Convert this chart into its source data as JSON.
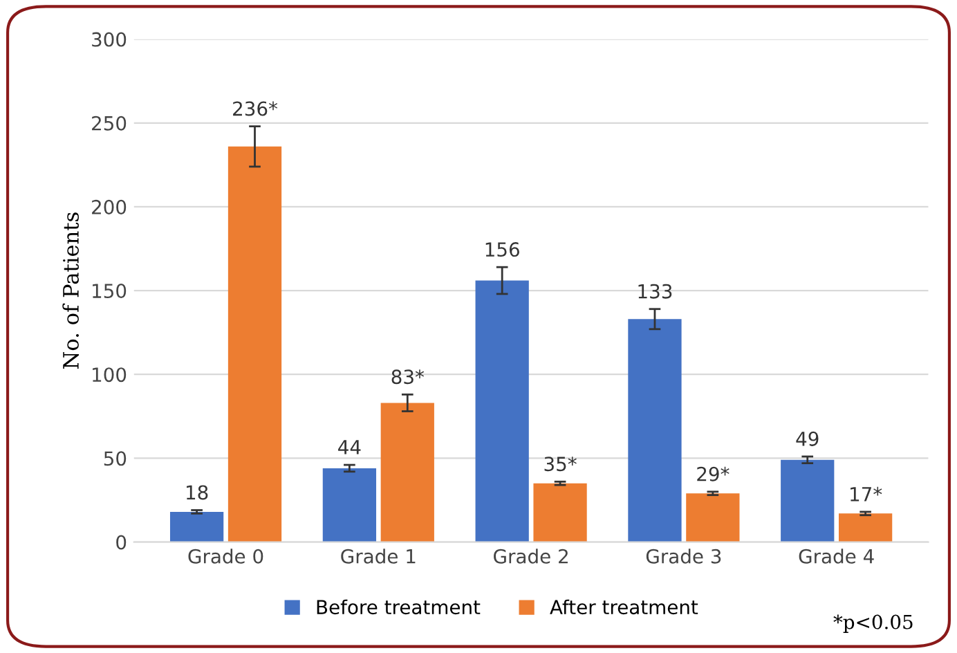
{
  "chart_data": {
    "type": "bar",
    "ylabel": "No. of Patients",
    "categories": [
      "Grade 0",
      "Grade 1",
      "Grade 2",
      "Grade 3",
      "Grade 4"
    ],
    "series": [
      {
        "name": "Before treatment",
        "color": "#4472c4",
        "values": [
          18,
          44,
          156,
          133,
          49
        ],
        "errors": [
          1,
          2,
          8,
          6,
          2
        ],
        "value_labels": [
          "18",
          "44",
          "156",
          "133",
          "49"
        ]
      },
      {
        "name": "After treatment",
        "color": "#ed7d31",
        "values": [
          236,
          83,
          35,
          29,
          17
        ],
        "errors": [
          12,
          5,
          1,
          1,
          1
        ],
        "value_labels": [
          "236*",
          "83*",
          "35*",
          "29*",
          "17*"
        ]
      }
    ],
    "ylim": [
      0,
      300
    ],
    "yticks": [
      0,
      50,
      100,
      150,
      200,
      250,
      300
    ],
    "grid": "y",
    "legend": "bottom",
    "annotations": [
      "*p<0.05"
    ]
  }
}
